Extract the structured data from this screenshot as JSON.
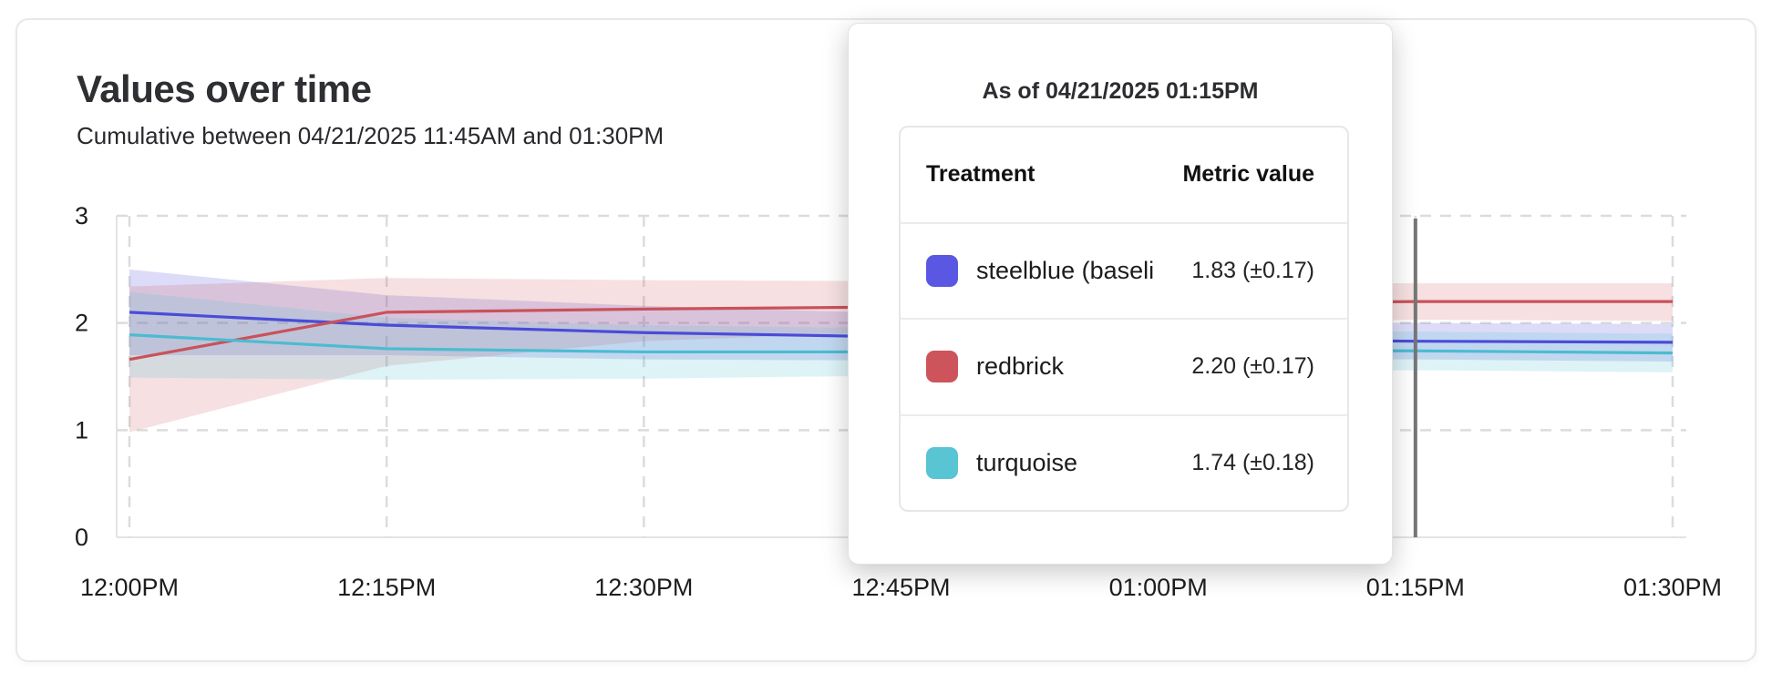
{
  "header": {
    "title": "Values over time",
    "subtitle": "Cumulative between 04/21/2025 11:45AM and 01:30PM"
  },
  "tooltip": {
    "title": "As of 04/21/2025 01:15PM",
    "columns": {
      "treatment": "Treatment",
      "metric": "Metric value"
    },
    "rows": [
      {
        "name": "steelblue  (baseli",
        "value": "1.83 (±0.17)",
        "color": "#5a57e3"
      },
      {
        "name": "redbrick",
        "value": "2.20 (±0.17)",
        "color": "#cd545b"
      },
      {
        "name": "turquoise",
        "value": "1.74 (±0.18)",
        "color": "#58c4d4"
      }
    ]
  },
  "chart_data": {
    "type": "line",
    "title": "Values over time",
    "xlabel": "",
    "ylabel": "",
    "categories": [
      "12:00PM",
      "12:15PM",
      "12:30PM",
      "12:45PM",
      "01:00PM",
      "01:15PM",
      "01:30PM"
    ],
    "ylim": [
      0,
      3
    ],
    "y_ticks": [
      0,
      1,
      2,
      3
    ],
    "grid": true,
    "legend_position": "tooltip-only",
    "hover_index": 5,
    "hover_time": "04/21/2025 01:15PM",
    "hover_line_color": "#767676",
    "gridline_color": "#dcdcde",
    "axis_line_color": "#e3e3e5",
    "tick_label_color": "#1c1d1f",
    "series": [
      {
        "name": "steelblue (baseline)",
        "color": "#4a4bd8",
        "band_color": "rgba(80,80,220,0.20)",
        "values": [
          2.1,
          1.98,
          1.91,
          1.87,
          1.85,
          1.83,
          1.82
        ],
        "upper": [
          2.5,
          2.26,
          2.16,
          2.09,
          2.03,
          2.0,
          1.99
        ],
        "lower": [
          1.7,
          1.7,
          1.66,
          1.65,
          1.66,
          1.66,
          1.64
        ]
      },
      {
        "name": "redbrick",
        "color": "#c9525a",
        "band_color": "rgba(205,83,89,0.18)",
        "values": [
          1.66,
          2.1,
          2.13,
          2.15,
          2.18,
          2.2,
          2.2
        ],
        "upper": [
          2.34,
          2.42,
          2.4,
          2.39,
          2.38,
          2.37,
          2.37
        ],
        "lower": [
          0.98,
          1.6,
          1.83,
          1.92,
          1.99,
          2.03,
          2.02
        ]
      },
      {
        "name": "turquoise",
        "color": "#4cbbd0",
        "band_color": "rgba(87,196,212,0.20)",
        "values": [
          1.89,
          1.76,
          1.73,
          1.73,
          1.74,
          1.74,
          1.72
        ],
        "upper": [
          2.29,
          2.05,
          1.98,
          1.95,
          1.93,
          1.92,
          1.9
        ],
        "lower": [
          1.49,
          1.47,
          1.48,
          1.51,
          1.53,
          1.56,
          1.54
        ]
      }
    ]
  }
}
